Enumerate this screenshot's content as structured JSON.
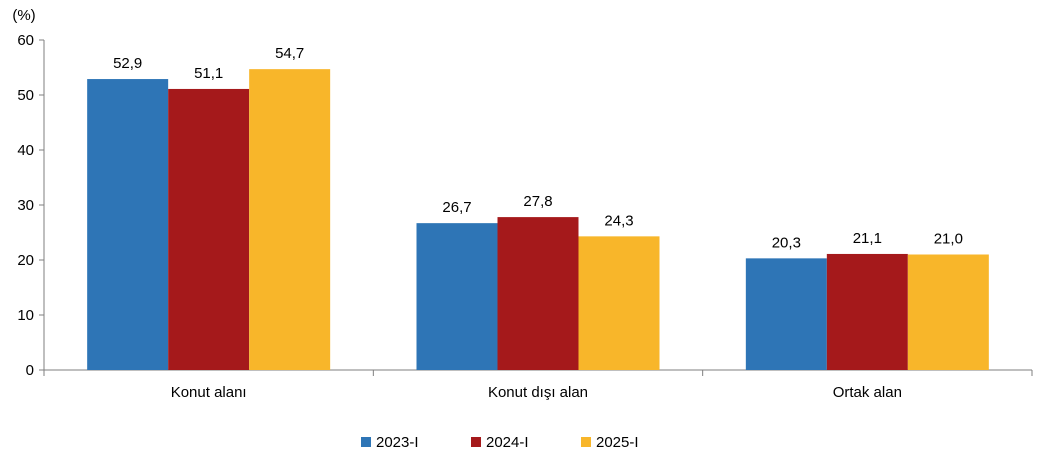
{
  "chart_data": {
    "type": "bar",
    "unit_label": "(%)",
    "categories": [
      "Konut alanı",
      "Konut dışı alan",
      "Ortak alan"
    ],
    "series": [
      {
        "name": "2023-I",
        "color": "#2E75B6",
        "values": [
          52.9,
          26.7,
          20.3
        ],
        "labels": [
          "52,9",
          "26,7",
          "20,3"
        ]
      },
      {
        "name": "2024-I",
        "color": "#A5191B",
        "values": [
          51.1,
          27.8,
          21.1
        ],
        "labels": [
          "51,1",
          "27,8",
          "21,1"
        ]
      },
      {
        "name": "2025-I",
        "color": "#F8B62A",
        "values": [
          54.7,
          24.3,
          21.0
        ],
        "labels": [
          "54,7",
          "24,3",
          "21,0"
        ]
      }
    ],
    "ylim": [
      0,
      60
    ],
    "yticks": [
      0,
      10,
      20,
      30,
      40,
      50,
      60
    ],
    "grid": false,
    "legend_position": "bottom-center"
  }
}
